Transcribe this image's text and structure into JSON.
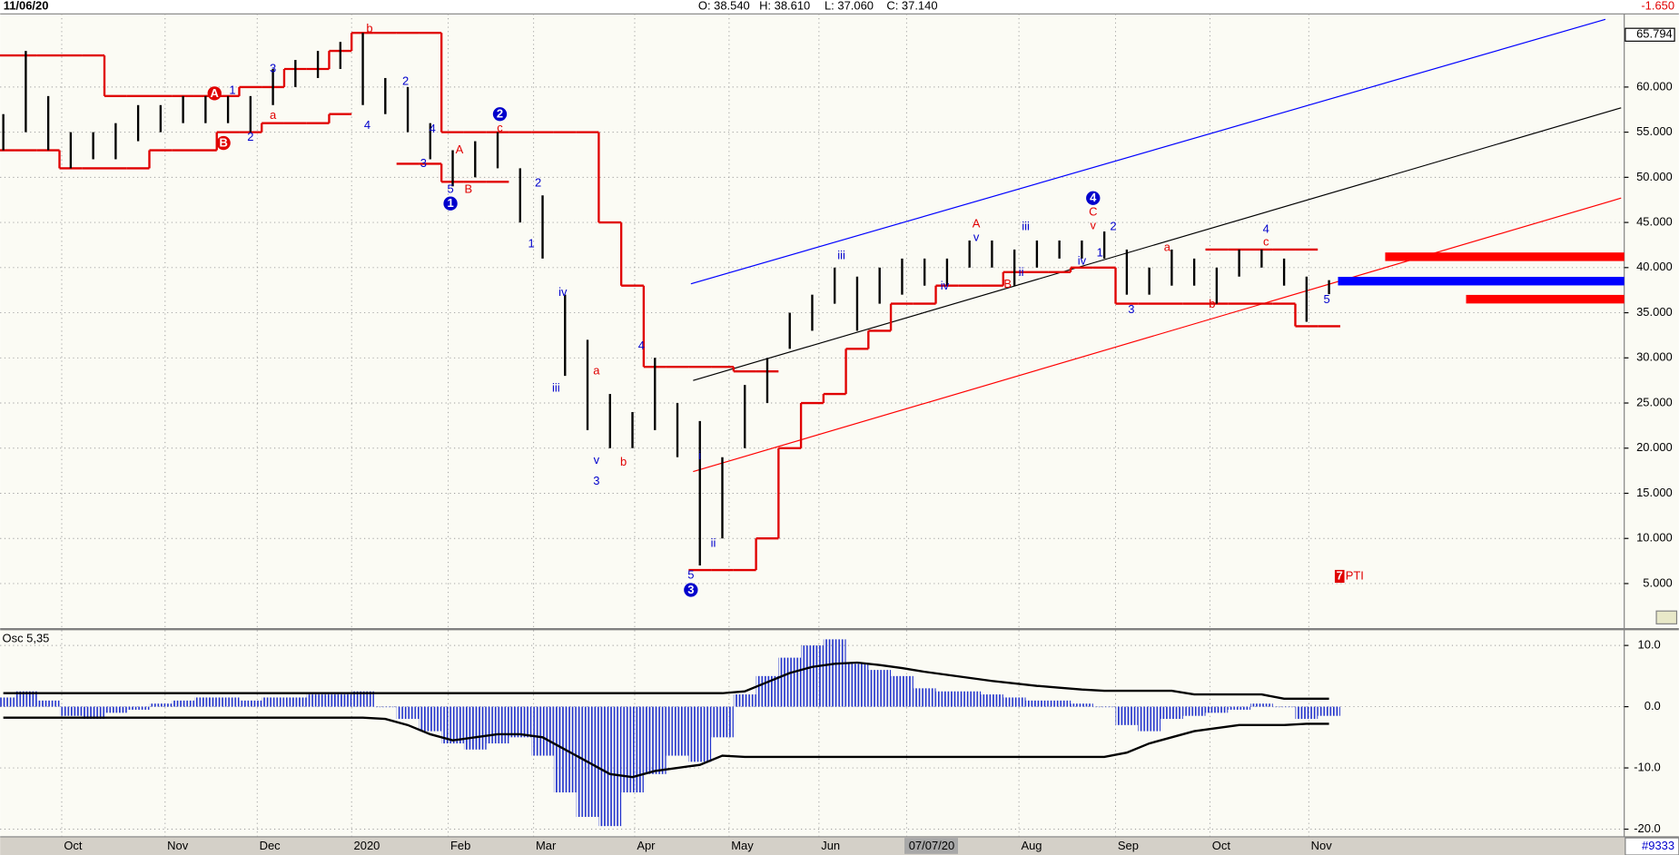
{
  "header": {
    "date": "11/06/20",
    "open": "O: 38.540",
    "high": "H: 38.610",
    "low": "L: 37.060",
    "close": "C: 37.140",
    "change": "-1.650"
  },
  "footer": {
    "code": "#9333"
  },
  "chart_data": [
    {
      "type": "ohlc",
      "x": [
        0,
        1,
        2,
        3,
        4,
        5,
        6,
        7,
        8,
        9,
        10,
        11,
        12,
        13,
        14,
        15,
        16,
        17,
        18,
        19,
        20,
        21,
        22,
        23,
        24,
        25,
        26,
        27,
        28,
        29,
        30,
        31,
        32,
        33,
        34,
        35,
        36,
        37,
        38,
        39,
        40,
        41,
        42,
        43,
        44,
        45,
        46,
        47,
        48,
        49,
        50,
        51,
        52,
        53,
        54,
        55,
        56,
        57,
        58,
        59
      ],
      "high": [
        57,
        64,
        59,
        55,
        55,
        56,
        58,
        58,
        59,
        59,
        59,
        59,
        62,
        63,
        64,
        65,
        66,
        61,
        60,
        56,
        53,
        54,
        55,
        51,
        48,
        37,
        32,
        26,
        24,
        30,
        25,
        23,
        19,
        27,
        30,
        35,
        37,
        40,
        39,
        40,
        41,
        41,
        41,
        43,
        43,
        42,
        43,
        43,
        43,
        44,
        42,
        40,
        42,
        41,
        40,
        42,
        42,
        41,
        39,
        38.61
      ],
      "low": [
        53,
        55,
        53,
        51,
        52,
        52,
        54,
        55,
        56,
        56,
        56,
        55,
        58,
        60,
        61,
        62,
        58,
        57,
        55,
        52,
        49,
        50,
        51,
        45,
        41,
        28,
        22,
        20,
        20,
        22,
        19,
        7,
        10,
        20,
        25,
        31,
        33,
        36,
        33,
        36,
        37,
        38,
        38,
        40,
        40,
        38,
        40,
        41,
        41,
        41,
        37,
        37,
        38,
        38,
        36,
        39,
        40,
        38,
        34,
        37.06
      ],
      "bar_color": "#000000",
      "xlim": [
        -0.14,
        71.9
      ],
      "xticks": [
        {
          "value": 2.6,
          "label": "Oct"
        },
        {
          "value": 7.2,
          "label": "Nov"
        },
        {
          "value": 11.3,
          "label": "Dec"
        },
        {
          "value": 15.5,
          "label": "2020"
        },
        {
          "value": 19.8,
          "label": "Feb"
        },
        {
          "value": 23.6,
          "label": "Mar"
        },
        {
          "value": 28.1,
          "label": "Apr"
        },
        {
          "value": 32.3,
          "label": "May"
        },
        {
          "value": 36.3,
          "label": "Jun"
        },
        {
          "value": 40.2,
          "label": "07/07/20",
          "highlight": true
        },
        {
          "value": 45.2,
          "label": "Aug"
        },
        {
          "value": 49.5,
          "label": "Sep"
        },
        {
          "value": 53.7,
          "label": "Oct"
        },
        {
          "value": 58.1,
          "label": "Nov"
        }
      ],
      "ylim": [
        0.3,
        68.1
      ],
      "yticks": [
        {
          "value": 5,
          "label": "5.000"
        },
        {
          "value": 10,
          "label": "10.000"
        },
        {
          "value": 15,
          "label": "15.000"
        },
        {
          "value": 20,
          "label": "20.000"
        },
        {
          "value": 25,
          "label": "25.000"
        },
        {
          "value": 30,
          "label": "30.000"
        },
        {
          "value": 35,
          "label": "35.000"
        },
        {
          "value": 40,
          "label": "40.000"
        },
        {
          "value": 45,
          "label": "45.000"
        },
        {
          "value": 50,
          "label": "50.000"
        },
        {
          "value": 55,
          "label": "55.000"
        },
        {
          "value": 60,
          "label": "60.000"
        }
      ],
      "scale_marker": {
        "value": 65.794,
        "label": "65.794"
      },
      "grid": true,
      "stops": [
        {
          "color": "#e00000",
          "values": [
            63.5,
            63.5,
            63.5,
            63.5,
            63.5,
            59,
            59,
            59,
            59,
            59,
            59,
            60,
            60,
            62,
            62,
            64,
            66,
            66,
            66,
            66,
            55,
            55,
            55,
            55,
            55,
            55,
            55,
            45,
            38,
            29,
            29,
            29,
            29,
            28.5,
            28.5,
            null,
            null,
            null,
            null,
            null,
            null,
            null,
            null,
            null,
            null,
            null,
            null,
            null,
            null,
            null,
            null,
            null,
            null,
            null,
            42,
            42,
            42,
            42,
            42,
            null
          ]
        },
        {
          "color": "#e00000",
          "values": [
            53,
            53,
            53,
            51,
            51,
            51,
            51,
            53,
            53,
            53,
            55,
            55,
            56,
            56,
            56,
            57,
            null,
            null,
            51.5,
            51.5,
            49.5,
            49.5,
            49.5,
            null,
            null,
            null,
            null,
            null,
            null,
            null,
            null,
            6.5,
            6.5,
            6.5,
            10,
            20,
            25,
            26,
            31,
            33,
            36,
            36,
            38,
            38,
            38,
            39.5,
            39.5,
            39.5,
            40,
            40,
            36,
            36,
            36,
            36,
            36,
            36,
            36,
            36,
            33.5,
            33.5
          ]
        }
      ],
      "trendlines": [
        {
          "color": "#0000ff",
          "x": [
            30.6,
            71.3
          ],
          "y": [
            38.2,
            67.5
          ]
        },
        {
          "color": "#000000",
          "x": [
            30.7,
            72
          ],
          "y": [
            27.5,
            57.7
          ]
        },
        {
          "color": "#ff0000",
          "x": [
            30.7,
            72
          ],
          "y": [
            17.4,
            47.7
          ]
        }
      ],
      "levels": [
        {
          "color": "#ff0000",
          "x": 61.5,
          "y": 41.2
        },
        {
          "color": "#0000ff",
          "x": 59.4,
          "y": 38.5
        },
        {
          "color": "#ff0000",
          "x": 65.1,
          "y": 36.5
        }
      ],
      "waves": [
        {
          "text": "A",
          "x": 9.4,
          "y": 59.3,
          "color": "#e00000",
          "circled": true
        },
        {
          "text": "B",
          "x": 9.8,
          "y": 53.8,
          "color": "#e00000",
          "circled": true
        },
        {
          "text": "1",
          "x": 10.2,
          "y": 59.6,
          "color": "#0000cc"
        },
        {
          "text": "a",
          "x": 12,
          "y": 56.8,
          "color": "#e00000"
        },
        {
          "text": "2",
          "x": 11,
          "y": 54.4,
          "color": "#0000cc"
        },
        {
          "text": "3",
          "x": 12,
          "y": 62,
          "color": "#0000cc"
        },
        {
          "text": "b",
          "x": 16.3,
          "y": 66.4,
          "color": "#e00000"
        },
        {
          "text": "4",
          "x": 16.2,
          "y": 55.7,
          "color": "#0000cc"
        },
        {
          "text": "2",
          "x": 17.9,
          "y": 60.6,
          "color": "#0000cc"
        },
        {
          "text": "4",
          "x": 19.1,
          "y": 55.3,
          "color": "#0000cc"
        },
        {
          "text": "3",
          "x": 18.7,
          "y": 51.5,
          "color": "#0000cc"
        },
        {
          "text": "A",
          "x": 20.3,
          "y": 53,
          "color": "#e00000"
        },
        {
          "text": "5",
          "x": 19.9,
          "y": 48.6,
          "color": "#0000cc"
        },
        {
          "text": "1",
          "x": 19.9,
          "y": 47.1,
          "color": "#0000cc",
          "circled": true
        },
        {
          "text": "B",
          "x": 20.7,
          "y": 48.6,
          "color": "#e00000"
        },
        {
          "text": "2",
          "x": 22.1,
          "y": 57,
          "color": "#0000cc",
          "circled": true
        },
        {
          "text": "c",
          "x": 22.1,
          "y": 55.4,
          "color": "#e00000"
        },
        {
          "text": "2",
          "x": 23.8,
          "y": 49.3,
          "color": "#0000cc"
        },
        {
          "text": "1",
          "x": 23.5,
          "y": 42.6,
          "color": "#0000cc"
        },
        {
          "text": "iv",
          "x": 24.9,
          "y": 37.2,
          "color": "#0000cc"
        },
        {
          "text": "iii",
          "x": 24.6,
          "y": 26.6,
          "color": "#0000cc"
        },
        {
          "text": "a",
          "x": 26.4,
          "y": 28.5,
          "color": "#e00000"
        },
        {
          "text": "v",
          "x": 26.4,
          "y": 18.6,
          "color": "#0000cc"
        },
        {
          "text": "3",
          "x": 26.4,
          "y": 16.3,
          "color": "#0000cc"
        },
        {
          "text": "b",
          "x": 27.6,
          "y": 18.4,
          "color": "#e00000"
        },
        {
          "text": "4",
          "x": 28.4,
          "y": 31.3,
          "color": "#0000cc"
        },
        {
          "text": "5",
          "x": 30.6,
          "y": 5.9,
          "color": "#0000cc"
        },
        {
          "text": "3",
          "x": 30.6,
          "y": 4.3,
          "color": "#0000cc",
          "circled": true
        },
        {
          "text": "i",
          "x": 31,
          "y": 19.1,
          "color": "#0000cc"
        },
        {
          "text": "ii",
          "x": 31.6,
          "y": 9.4,
          "color": "#0000cc"
        },
        {
          "text": "iii",
          "x": 37.3,
          "y": 41.3,
          "color": "#0000cc"
        },
        {
          "text": "iv",
          "x": 41.9,
          "y": 37.9,
          "color": "#0000cc"
        },
        {
          "text": "A",
          "x": 43.3,
          "y": 44.8,
          "color": "#e00000"
        },
        {
          "text": "v",
          "x": 43.3,
          "y": 43.3,
          "color": "#0000cc"
        },
        {
          "text": "B",
          "x": 44.7,
          "y": 38.1,
          "color": "#e00000"
        },
        {
          "text": "ii",
          "x": 45.3,
          "y": 39.4,
          "color": "#0000cc"
        },
        {
          "text": "iii",
          "x": 45.5,
          "y": 44.5,
          "color": "#0000cc"
        },
        {
          "text": "iv",
          "x": 48,
          "y": 40.7,
          "color": "#0000cc"
        },
        {
          "text": "4",
          "x": 48.5,
          "y": 47.7,
          "color": "#0000cc",
          "circled": true
        },
        {
          "text": "C",
          "x": 48.5,
          "y": 46.1,
          "color": "#e00000"
        },
        {
          "text": "v",
          "x": 48.5,
          "y": 44.6,
          "color": "#e00000"
        },
        {
          "text": "2",
          "x": 49.4,
          "y": 44.5,
          "color": "#0000cc"
        },
        {
          "text": "1",
          "x": 48.8,
          "y": 41.6,
          "color": "#0000cc"
        },
        {
          "text": "3",
          "x": 50.2,
          "y": 35.3,
          "color": "#0000cc"
        },
        {
          "text": "a",
          "x": 51.8,
          "y": 42.2,
          "color": "#e00000"
        },
        {
          "text": "b",
          "x": 53.8,
          "y": 35.9,
          "color": "#e00000"
        },
        {
          "text": "4",
          "x": 56.2,
          "y": 44.2,
          "color": "#0000cc"
        },
        {
          "text": "c",
          "x": 56.2,
          "y": 42.8,
          "color": "#e00000"
        },
        {
          "text": "5",
          "x": 58.9,
          "y": 36.4,
          "color": "#0000cc"
        }
      ],
      "badge": {
        "number": "7",
        "text": "PTI",
        "x": 59.4,
        "y": 5.8,
        "color": "#e00000"
      }
    },
    {
      "type": "oscillator",
      "title": "Osc 5,35",
      "color": "#2233cc",
      "values": [
        1.5,
        2.5,
        1,
        -1.5,
        -2,
        -1,
        -0.5,
        0.5,
        1,
        1.5,
        1.5,
        1,
        1.5,
        1.5,
        2,
        2,
        2.5,
        0,
        -2,
        -4,
        -6,
        -7,
        -6,
        -5,
        -8,
        -14,
        -18,
        -19.5,
        -14,
        -11,
        -8,
        -9,
        -5,
        2,
        5,
        8,
        10,
        11,
        7,
        6,
        5,
        3,
        2.5,
        2.5,
        2,
        1.5,
        1,
        1,
        0.5,
        0,
        -3,
        -4,
        -2,
        -1.5,
        -1,
        -0.5,
        0.5,
        0,
        -2,
        -1.5
      ],
      "upper": [
        2.2,
        2.2,
        2.2,
        2.2,
        2.2,
        2.2,
        2.2,
        2.2,
        2.2,
        2.2,
        2.2,
        2.2,
        2.2,
        2.2,
        2.2,
        2.2,
        2.2,
        2.2,
        2.2,
        2.2,
        2.2,
        2.2,
        2.2,
        2.2,
        2.2,
        2.2,
        2.2,
        2.2,
        2.2,
        2.2,
        2.2,
        2.2,
        2.2,
        2.5,
        4,
        5.5,
        6.5,
        7,
        7.2,
        6.8,
        6.3,
        5.7,
        5.2,
        4.7,
        4.2,
        3.8,
        3.4,
        3.1,
        2.8,
        2.6,
        2.6,
        2.6,
        2.6,
        2,
        2,
        2,
        2,
        1.3,
        1.3,
        1.3
      ],
      "lower": [
        -1.8,
        -1.8,
        -1.8,
        -1.8,
        -1.8,
        -1.8,
        -1.8,
        -1.8,
        -1.8,
        -1.8,
        -1.8,
        -1.8,
        -1.8,
        -1.8,
        -1.8,
        -1.8,
        -1.8,
        -2,
        -3,
        -4.5,
        -5.5,
        -5,
        -4.5,
        -4.5,
        -5,
        -7,
        -9,
        -11,
        -11.5,
        -10.5,
        -10,
        -9.5,
        -8,
        -8.2,
        -8.2,
        -8.2,
        -8.2,
        -8.2,
        -8.2,
        -8.2,
        -8.2,
        -8.2,
        -8.2,
        -8.2,
        -8.2,
        -8.2,
        -8.2,
        -8.2,
        -8.2,
        -8.2,
        -7.5,
        -6,
        -5,
        -4,
        -3.5,
        -3,
        -3,
        -3,
        -2.8,
        -2.8
      ],
      "ylim": [
        -20.9,
        12.3
      ],
      "yticks": [
        {
          "value": 10,
          "label": "10.0"
        },
        {
          "value": 0,
          "label": "0.0"
        },
        {
          "value": -10,
          "label": "-10.0"
        },
        {
          "value": -20,
          "label": "-20.0"
        }
      ]
    }
  ]
}
